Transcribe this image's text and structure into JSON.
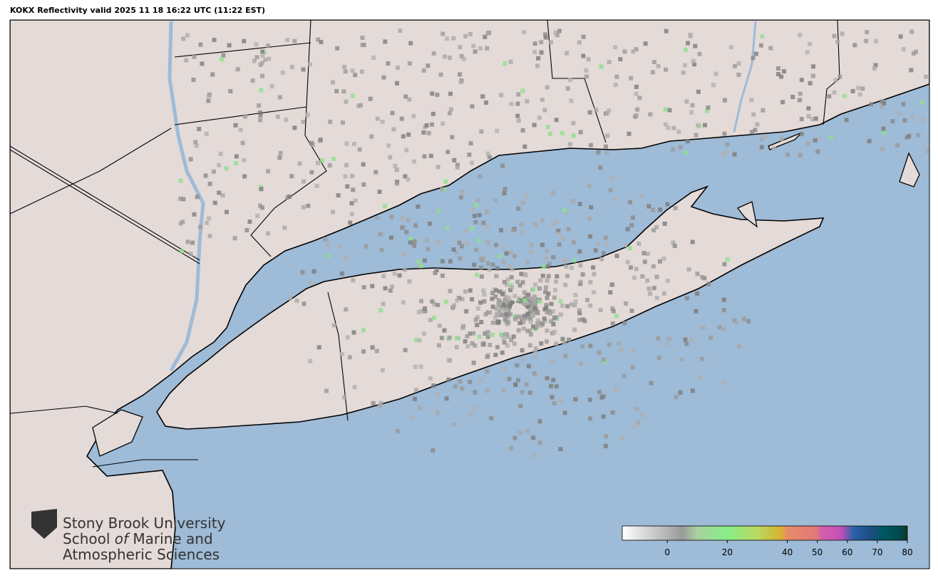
{
  "title": "KOKX Reflectivity valid 2025 11 18 16:22 UTC (11:22 EST)",
  "logo": {
    "line1": "Stony Brook University",
    "line2": [
      "School",
      "of",
      "Marine and"
    ],
    "line3": "Atmospheric Sciences"
  },
  "colorbar": {
    "lim": [
      -15,
      80
    ],
    "ticks": [
      0,
      20,
      40,
      50,
      60,
      70,
      80
    ],
    "stops": [
      {
        "value": -15,
        "color": "#ffffff"
      },
      {
        "value": 5,
        "color": "#9a9a9a"
      },
      {
        "value": 10,
        "color": "#a8d0a0"
      },
      {
        "value": 20,
        "color": "#88ee88"
      },
      {
        "value": 30,
        "color": "#b8d860"
      },
      {
        "value": 38,
        "color": "#d8b030"
      },
      {
        "value": 40,
        "color": "#e88c6a"
      },
      {
        "value": 50,
        "color": "#e07878"
      },
      {
        "value": 51,
        "color": "#d860a8"
      },
      {
        "value": 58,
        "color": "#c050b8"
      },
      {
        "value": 62,
        "color": "#2c60a8"
      },
      {
        "value": 68,
        "color": "#1a4c80"
      },
      {
        "value": 72,
        "color": "#005860"
      },
      {
        "value": 78,
        "color": "#004848"
      },
      {
        "value": 80,
        "color": "#103820"
      }
    ]
  }
}
